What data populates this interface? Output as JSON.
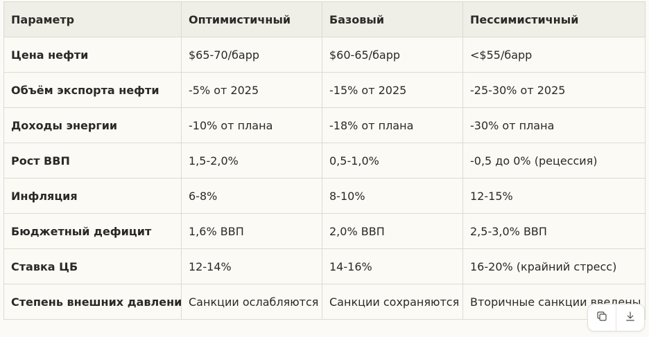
{
  "table": {
    "headers": [
      "Параметр",
      "Оптимистичный",
      "Базовый",
      "Пессимистичный"
    ],
    "rows": [
      [
        "Цена нефти",
        "$65-70/барр",
        "$60-65/барр",
        "<$55/барр"
      ],
      [
        "Объём экспорта нефти",
        "-5% от 2025",
        "-15% от 2025",
        "-25-30% от 2025"
      ],
      [
        "Доходы энергии",
        "-10% от плана",
        "-18% от плана",
        "-30% от плана"
      ],
      [
        "Рост ВВП",
        "1,5-2,0%",
        "0,5-1,0%",
        "-0,5 до 0% (рецессия)"
      ],
      [
        "Инфляция",
        "6-8%",
        "8-10%",
        "12-15%"
      ],
      [
        "Бюджетный дефицит",
        "1,6% ВВП",
        "2,0% ВВП",
        "2,5-3,0% ВВП"
      ],
      [
        "Ставка ЦБ",
        "12-14%",
        "14-16%",
        "16-20% (крайний стресс)"
      ],
      [
        "Степень внешних давлений",
        "Санкции ослабляются",
        "Санкции сохраняются",
        "Вторичные санкции введены"
      ]
    ]
  },
  "actions": {
    "copy_icon": "copy-icon",
    "download_icon": "download-icon"
  }
}
